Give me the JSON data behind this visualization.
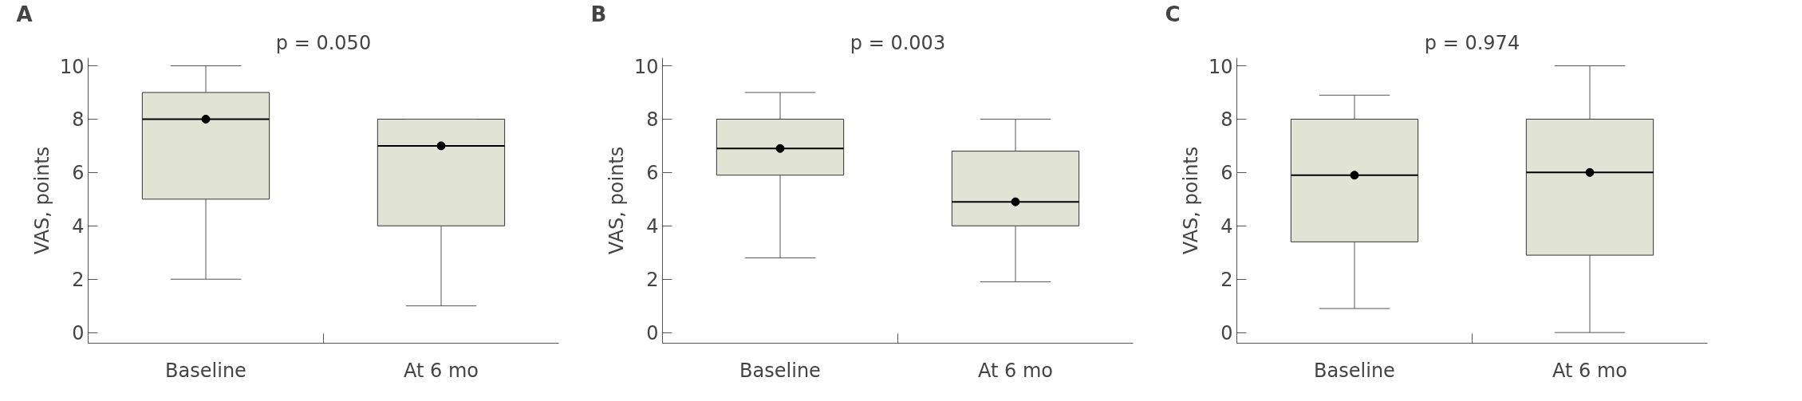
{
  "chart_data": [
    {
      "type": "box",
      "title": "p = 0.050",
      "annotations": [
        "A"
      ],
      "ylabel": "VAS, points",
      "categories": [
        "Baseline",
        "At 6 mo"
      ],
      "ylim": [
        -0.4,
        10.3
      ],
      "yticks": [
        0,
        2,
        4,
        6,
        8,
        10
      ],
      "grid": false,
      "color": "#e1e4d4",
      "boxes": [
        {
          "low": 2,
          "q1": 5,
          "median": 8,
          "q3": 9,
          "high": 10,
          "mean": 8
        },
        {
          "low": 1,
          "q1": 4,
          "median": 7,
          "q3": 8,
          "high": 8,
          "mean": 7
        }
      ]
    },
    {
      "type": "box",
      "title": "p = 0.003",
      "annotations": [
        "B"
      ],
      "ylabel": "VAS, points",
      "categories": [
        "Baseline",
        "At 6 mo"
      ],
      "ylim": [
        -0.4,
        10.3
      ],
      "yticks": [
        0,
        2,
        4,
        6,
        8,
        10
      ],
      "grid": false,
      "color": "#e1e4d4",
      "boxes": [
        {
          "low": 2.8,
          "q1": 5.9,
          "median": 6.9,
          "q3": 8,
          "high": 9,
          "mean": 6.9
        },
        {
          "low": 1.9,
          "q1": 4,
          "median": 4.9,
          "q3": 6.8,
          "high": 8,
          "mean": 4.9
        }
      ]
    },
    {
      "type": "box",
      "title": "p = 0.974",
      "annotations": [
        "C"
      ],
      "ylabel": "VAS, points",
      "categories": [
        "Baseline",
        "At 6 mo"
      ],
      "ylim": [
        -0.4,
        10.3
      ],
      "yticks": [
        0,
        2,
        4,
        6,
        8,
        10
      ],
      "grid": false,
      "color": "#e1e4d4",
      "boxes": [
        {
          "low": 0.9,
          "q1": 3.4,
          "median": 5.9,
          "q3": 8,
          "high": 8.9,
          "mean": 5.9
        },
        {
          "low": 0,
          "q1": 2.9,
          "median": 6,
          "q3": 8,
          "high": 10,
          "mean": 6
        }
      ]
    }
  ]
}
